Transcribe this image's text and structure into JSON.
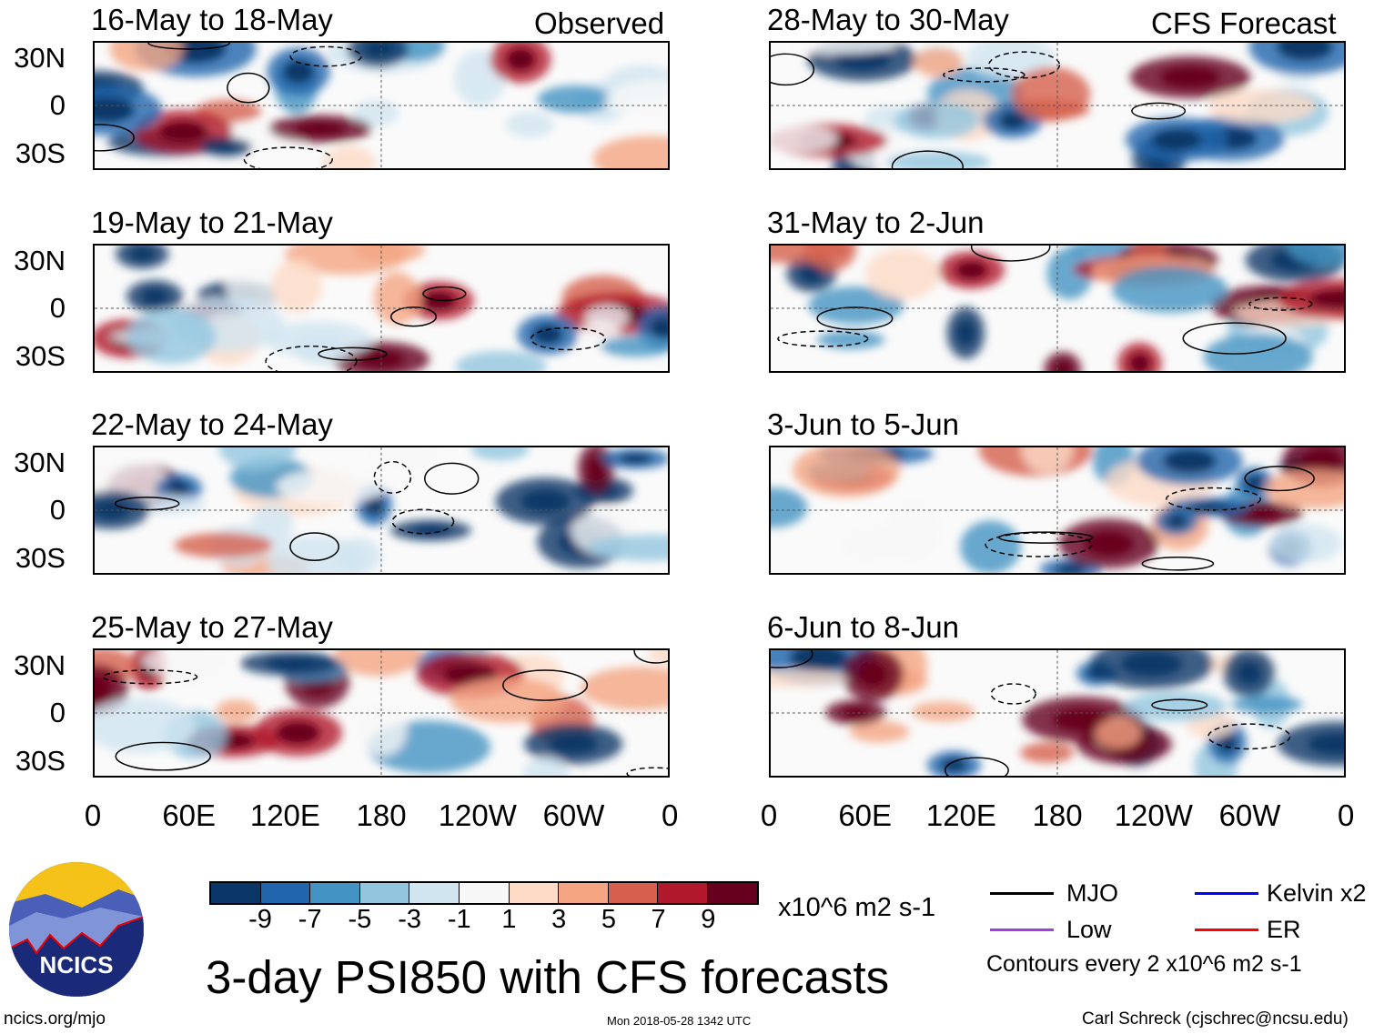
{
  "header": {
    "observed_label": "Observed",
    "forecast_label": "CFS Forecast"
  },
  "observed_panels": [
    {
      "title": "16-May to 18-May"
    },
    {
      "title": "19-May to 21-May"
    },
    {
      "title": "22-May to 24-May"
    },
    {
      "title": "25-May to 27-May"
    }
  ],
  "forecast_panels": [
    {
      "title": "28-May to 30-May"
    },
    {
      "title": "31-May to 2-Jun"
    },
    {
      "title": "3-Jun to 5-Jun"
    },
    {
      "title": "6-Jun to 8-Jun"
    }
  ],
  "y_labels": [
    "30N",
    "0",
    "30S"
  ],
  "x_labels": [
    "0",
    "60E",
    "120E",
    "180",
    "120W",
    "60W",
    "0"
  ],
  "colorbar": {
    "colors": [
      "#0b3768",
      "#2166ac",
      "#4393c3",
      "#92c5de",
      "#d1e5f0",
      "#f7f7f7",
      "#fddbc7",
      "#f4a582",
      "#d6604d",
      "#b2182b",
      "#67001f"
    ],
    "labels": [
      "-9",
      "-7",
      "-5",
      "-3",
      "-1",
      "1",
      "3",
      "5",
      "7",
      "9"
    ],
    "units": "x10^6 m2 s-1"
  },
  "title": "3-day PSI850 with CFS forecasts",
  "legend": {
    "items": [
      {
        "label": "MJO",
        "color": "#000000"
      },
      {
        "label": "Kelvin x2",
        "color": "#0000ff"
      },
      {
        "label": "Low",
        "color": "#a040e0"
      },
      {
        "label": "ER",
        "color": "#ff0000"
      }
    ],
    "contour_note": "Contours every 2 x10^6 m2 s-1"
  },
  "logo": {
    "text": "NCICS"
  },
  "footer": {
    "url": "ncics.org/mjo",
    "timestamp": "Mon 2018-05-28 1342 UTC",
    "credit": "Carl Schreck (cjschrec@ncsu.edu)"
  }
}
